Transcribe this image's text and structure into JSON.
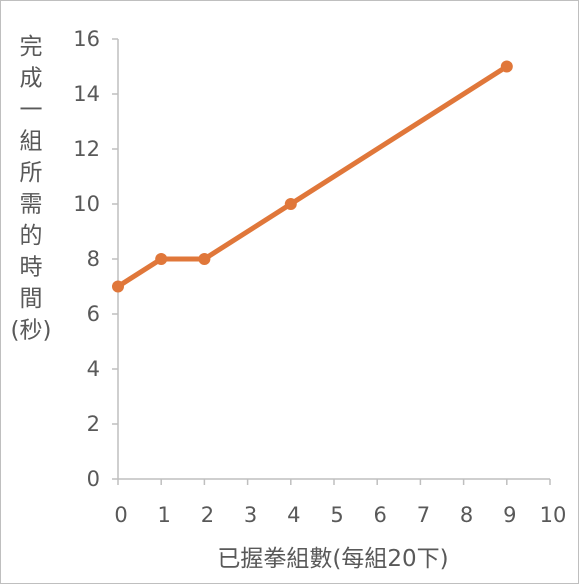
{
  "chart_data": {
    "type": "line",
    "title": "",
    "xlabel": "已握拳組數(每組20下)",
    "ylabel": "完成一組所需的時間(秒)",
    "ylabel_lines": [
      "完",
      "成",
      "一",
      "組",
      "所",
      "需",
      "的",
      "時",
      "間",
      "(秒)"
    ],
    "x_ticks": [
      0,
      1,
      2,
      3,
      4,
      5,
      6,
      7,
      8,
      9,
      10
    ],
    "y_ticks": [
      0,
      2,
      4,
      6,
      8,
      10,
      12,
      14,
      16
    ],
    "xlim": [
      0,
      10
    ],
    "ylim": [
      0,
      16
    ],
    "grid": false,
    "series": [
      {
        "x": [
          0,
          1,
          2,
          4,
          9
        ],
        "y": [
          7,
          8,
          8,
          10,
          15
        ],
        "color": "#e0773a"
      }
    ]
  },
  "colors": {
    "axis": "#bfbfbf",
    "text": "#595959",
    "line": "#e0773a"
  }
}
